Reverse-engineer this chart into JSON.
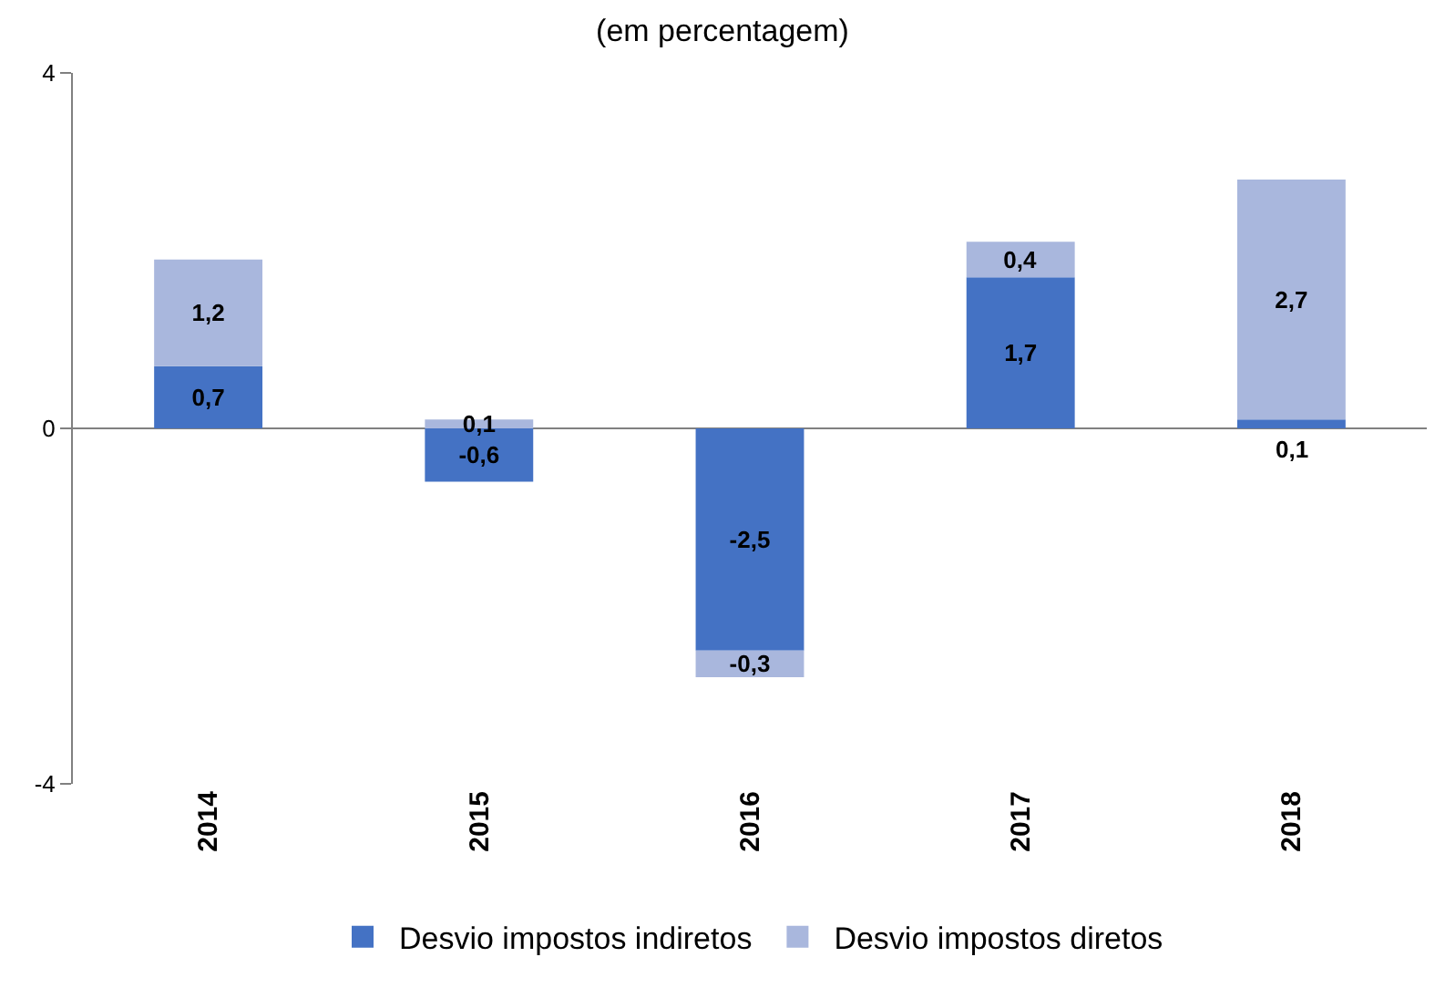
{
  "chart_data": {
    "type": "bar",
    "subtitle": "(em percentagem)",
    "categories": [
      "2014",
      "2015",
      "2016",
      "2017",
      "2018"
    ],
    "series": [
      {
        "name": "Desvio impostos indiretos",
        "color": "#4472c4",
        "values": [
          0.7,
          -0.6,
          -2.5,
          1.7,
          0.1
        ],
        "value_labels": [
          "0,7",
          "-0,6",
          "-2,5",
          "1,7",
          "0,1"
        ]
      },
      {
        "name": "Desvio impostos diretos",
        "color": "#a9b7dd",
        "values": [
          1.2,
          0.1,
          -0.3,
          0.4,
          2.7
        ],
        "value_labels": [
          "1,2",
          "0,1",
          "-0,3",
          "0,4",
          "2,7"
        ]
      }
    ],
    "stacked": true,
    "data_labels": true,
    "ref_lines": [
      {
        "axis": "y",
        "value": 0,
        "color": "#808080"
      }
    ],
    "ylim": [
      -4,
      4
    ],
    "yticks": [
      -4,
      0,
      4
    ],
    "grid": false,
    "legend": "bottom"
  }
}
